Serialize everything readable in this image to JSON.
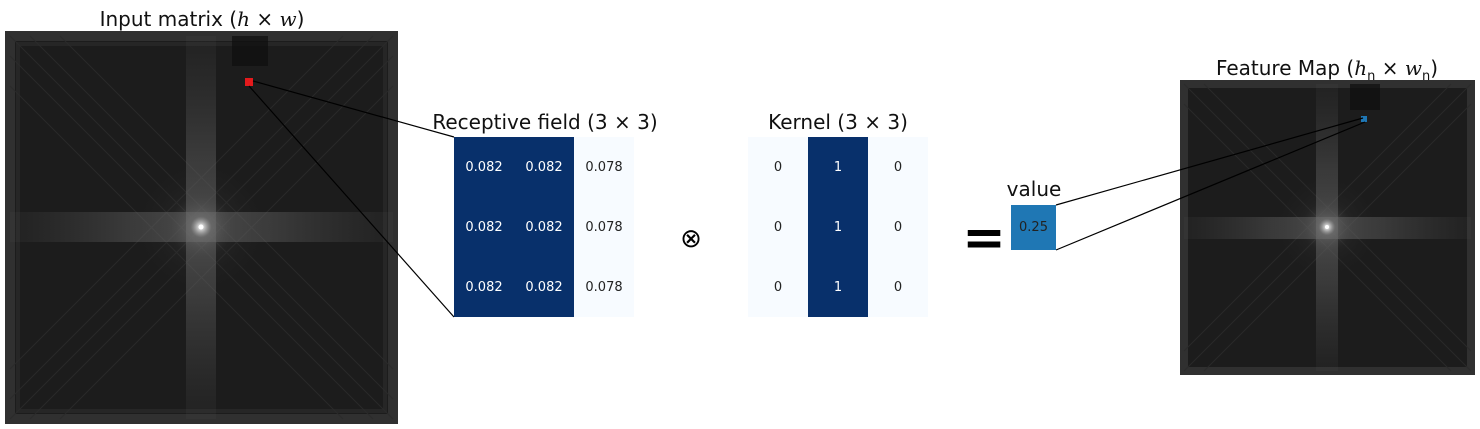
{
  "titles": {
    "input": {
      "prefix": "Input matrix (",
      "h": "h",
      "times": " × ",
      "w": "w",
      "suffix": ")"
    },
    "receptive": {
      "prefix": "Receptive field (",
      "a": "3",
      "times": " × ",
      "b": "3",
      "suffix": ")"
    },
    "kernel": {
      "prefix": "Kernel (",
      "a": "3",
      "times": " × ",
      "b": "3",
      "suffix": ")"
    },
    "value": "value",
    "feature": {
      "prefix": "Feature Map (",
      "h": "h",
      "hsub": "n",
      "times": " × ",
      "w": "w",
      "wsub": "n",
      "suffix": ")"
    }
  },
  "receptive_field": {
    "values": [
      [
        "0.082",
        "0.082",
        "0.078"
      ],
      [
        "0.082",
        "0.082",
        "0.078"
      ],
      [
        "0.082",
        "0.082",
        "0.078"
      ]
    ],
    "shade": [
      [
        "dark",
        "dark",
        "light"
      ],
      [
        "dark",
        "dark",
        "light"
      ],
      [
        "dark",
        "dark",
        "light"
      ]
    ]
  },
  "kernel": {
    "values": [
      [
        "0",
        "1",
        "0"
      ],
      [
        "0",
        "1",
        "0"
      ],
      [
        "0",
        "1",
        "0"
      ]
    ],
    "shade": [
      [
        "light",
        "dark",
        "light"
      ],
      [
        "light",
        "dark",
        "light"
      ],
      [
        "light",
        "dark",
        "light"
      ]
    ]
  },
  "result_value": "0.25",
  "operators": {
    "convolve": "⊗",
    "equals": "="
  },
  "colors": {
    "dark_cell": "#08306b",
    "light_cell": "#f7fbff",
    "value_box": "#1f77b4",
    "input_marker": "#e41a1c",
    "feature_marker": "#1f77b4"
  }
}
